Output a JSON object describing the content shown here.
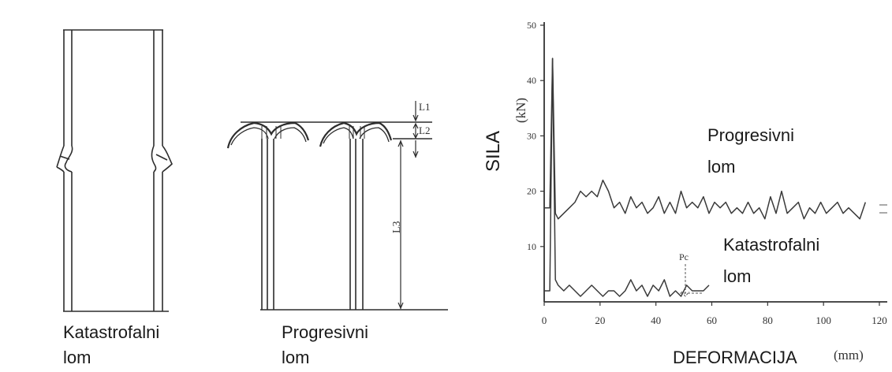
{
  "left_figure": {
    "caption_line1": "Katastrofalni",
    "caption_line2": "lom"
  },
  "middle_figure": {
    "caption_line1": "Progresivni",
    "caption_line2": "lom",
    "dimension_labels": [
      "L1",
      "L2",
      "L3"
    ]
  },
  "chart": {
    "y_axis_title": "SILA",
    "y_axis_unit": "(kN)",
    "x_axis_title": "DEFORMACIJA",
    "x_axis_unit": "(mm)",
    "annotation_progressive_line1": "Progresivni",
    "annotation_progressive_line2": "lom",
    "annotation_catastrophic_line1": "Katastrofalni",
    "annotation_catastrophic_line2": "lom",
    "marker_label": "Pc"
  },
  "chart_data": {
    "type": "line",
    "xlabel": "DEFORMACIJA (mm)",
    "ylabel": "SILA (kN)",
    "xlim": [
      0,
      120
    ],
    "ylim": [
      0,
      50
    ],
    "x_ticks": [
      0,
      20,
      40,
      60,
      80,
      100,
      120
    ],
    "y_ticks": [
      10,
      20,
      30,
      40,
      50
    ],
    "grid": false,
    "series": [
      {
        "name": "Progresivni lom",
        "x": [
          0,
          2,
          3,
          4,
          5,
          7,
          9,
          11,
          13,
          15,
          17,
          19,
          21,
          23,
          25,
          27,
          29,
          31,
          33,
          35,
          37,
          39,
          41,
          43,
          45,
          47,
          49,
          51,
          53,
          55,
          57,
          59,
          61,
          63,
          65,
          67,
          69,
          71,
          73,
          75,
          77,
          79,
          81,
          83,
          85,
          87,
          89,
          91,
          93,
          95,
          97,
          99,
          101,
          103,
          105,
          107,
          109,
          111,
          113,
          115
        ],
        "y": [
          17,
          17,
          44,
          16,
          15,
          16,
          17,
          18,
          20,
          19,
          20,
          19,
          22,
          20,
          17,
          18,
          16,
          19,
          17,
          18,
          16,
          17,
          19,
          16,
          18,
          16,
          20,
          17,
          18,
          17,
          19,
          16,
          18,
          17,
          18,
          16,
          17,
          16,
          18,
          16,
          17,
          15,
          19,
          16,
          20,
          16,
          17,
          18,
          15,
          17,
          16,
          18,
          16,
          17,
          18,
          16,
          17,
          16,
          15,
          18
        ]
      },
      {
        "name": "Katastrofalni lom",
        "x": [
          0,
          2,
          3,
          4,
          5,
          7,
          9,
          11,
          13,
          15,
          17,
          19,
          21,
          23,
          25,
          27,
          29,
          31,
          33,
          35,
          37,
          39,
          41,
          43,
          45,
          47,
          49,
          51,
          53,
          55,
          57,
          59
        ],
        "y": [
          2,
          2,
          44,
          4,
          3,
          2,
          3,
          2,
          1,
          2,
          3,
          2,
          1,
          2,
          2,
          1,
          2,
          4,
          2,
          3,
          1,
          3,
          2,
          4,
          1,
          2,
          1,
          3,
          2,
          2,
          2,
          3
        ]
      }
    ]
  }
}
